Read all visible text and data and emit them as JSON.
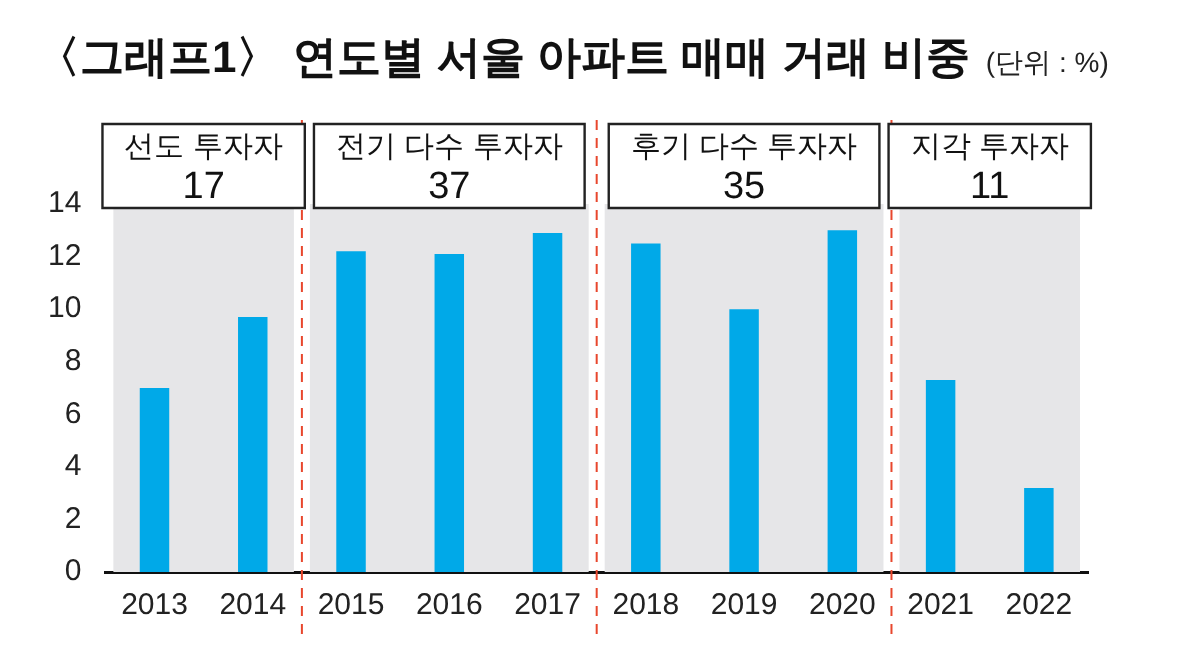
{
  "chart_data": {
    "type": "bar",
    "title": "〈그래프1〉 연도별 서울 아파트 매매 거래 비중",
    "subtitle": "(단위 : %)",
    "categories": [
      "2013",
      "2014",
      "2015",
      "2016",
      "2017",
      "2018",
      "2019",
      "2020",
      "2021",
      "2022"
    ],
    "values": [
      7.0,
      9.7,
      12.2,
      12.1,
      12.9,
      12.5,
      10.0,
      13.0,
      7.3,
      3.2
    ],
    "color": "#00a9e8",
    "ylim": [
      0,
      14
    ],
    "yticks": [
      0,
      2,
      4,
      6,
      8,
      10,
      12,
      14
    ],
    "grid": false,
    "legend": false,
    "bands": [
      {
        "axis": "x",
        "from": "2013",
        "to": "2014",
        "label": "선도 투자자\n17",
        "color": "#e6e6e8"
      },
      {
        "axis": "x",
        "from": "2015",
        "to": "2017",
        "label": "전기 다수 투자자\n37",
        "color": "#e6e6e8"
      },
      {
        "axis": "x",
        "from": "2018",
        "to": "2020",
        "label": "후기 다수 투자자\n35",
        "color": "#e6e6e8"
      },
      {
        "axis": "x",
        "from": "2021",
        "to": "2022",
        "label": "지각 투자자\n11",
        "color": "#e6e6e8"
      }
    ]
  }
}
